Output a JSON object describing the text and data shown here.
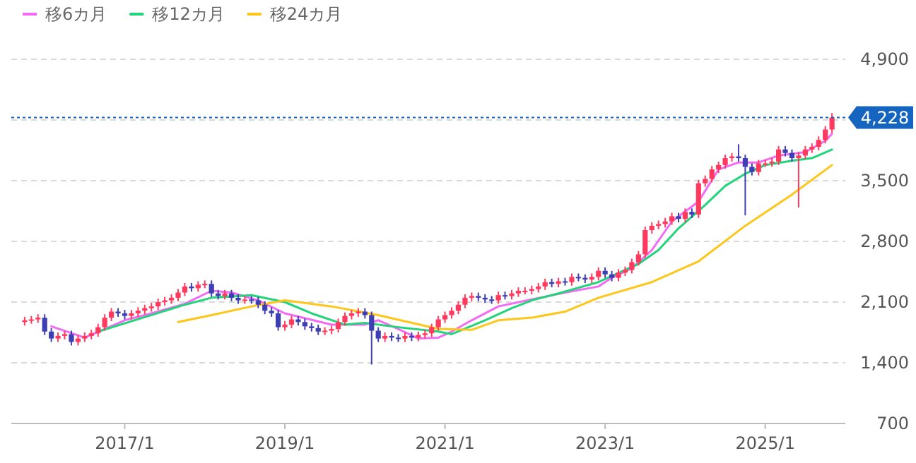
{
  "chart_data": {
    "type": "candlestick",
    "x": [
      "2015-10",
      "2015-11",
      "2015-12",
      "2016-01",
      "2016-02",
      "2016-03",
      "2016-04",
      "2016-05",
      "2016-06",
      "2016-07",
      "2016-08",
      "2016-09",
      "2016-10",
      "2016-11",
      "2016-12",
      "2017-01",
      "2017-02",
      "2017-03",
      "2017-04",
      "2017-05",
      "2017-06",
      "2017-07",
      "2017-08",
      "2017-09",
      "2017-10",
      "2017-11",
      "2017-12",
      "2018-01",
      "2018-02",
      "2018-03",
      "2018-04",
      "2018-05",
      "2018-06",
      "2018-07",
      "2018-08",
      "2018-09",
      "2018-10",
      "2018-11",
      "2018-12",
      "2019-01",
      "2019-02",
      "2019-03",
      "2019-04",
      "2019-05",
      "2019-06",
      "2019-07",
      "2019-08",
      "2019-09",
      "2019-10",
      "2019-11",
      "2019-12",
      "2020-01",
      "2020-02",
      "2020-03",
      "2020-04",
      "2020-05",
      "2020-06",
      "2020-07",
      "2020-08",
      "2020-09",
      "2020-10",
      "2020-11",
      "2020-12",
      "2021-01",
      "2021-02",
      "2021-03",
      "2021-04",
      "2021-05",
      "2021-06",
      "2021-07",
      "2021-08",
      "2021-09",
      "2021-10",
      "2021-11",
      "2021-12",
      "2022-01",
      "2022-02",
      "2022-03",
      "2022-04",
      "2022-05",
      "2022-06",
      "2022-07",
      "2022-08",
      "2022-09",
      "2022-10",
      "2022-11",
      "2022-12",
      "2023-01",
      "2023-02",
      "2023-03",
      "2023-04",
      "2023-05",
      "2023-06",
      "2023-07",
      "2023-08",
      "2023-09",
      "2023-10",
      "2023-11",
      "2023-12",
      "2024-01",
      "2024-02",
      "2024-03",
      "2024-04",
      "2024-05",
      "2024-06",
      "2024-07",
      "2024-08",
      "2024-09",
      "2024-10",
      "2024-11",
      "2024-12",
      "2025-01",
      "2025-02",
      "2025-03",
      "2025-04",
      "2025-05",
      "2025-06",
      "2025-07",
      "2025-08",
      "2025-09",
      "2025-10",
      "2025-11"
    ],
    "ohlc": [
      [
        1870,
        1930,
        1830,
        1890
      ],
      [
        1890,
        1940,
        1850,
        1900
      ],
      [
        1900,
        1960,
        1860,
        1920
      ],
      [
        1920,
        1960,
        1720,
        1760
      ],
      [
        1760,
        1800,
        1640,
        1680
      ],
      [
        1680,
        1750,
        1640,
        1710
      ],
      [
        1710,
        1770,
        1670,
        1730
      ],
      [
        1730,
        1770,
        1600,
        1640
      ],
      [
        1640,
        1720,
        1600,
        1680
      ],
      [
        1680,
        1750,
        1640,
        1710
      ],
      [
        1710,
        1780,
        1670,
        1740
      ],
      [
        1740,
        1850,
        1700,
        1810
      ],
      [
        1810,
        1960,
        1770,
        1920
      ],
      [
        1920,
        2030,
        1880,
        1990
      ],
      [
        1990,
        2030,
        1930,
        1970
      ],
      [
        1970,
        2010,
        1900,
        1940
      ],
      [
        1940,
        2010,
        1900,
        1970
      ],
      [
        1970,
        2040,
        1930,
        2000
      ],
      [
        2000,
        2070,
        1960,
        2030
      ],
      [
        2030,
        2090,
        1990,
        2050
      ],
      [
        2050,
        2140,
        2010,
        2100
      ],
      [
        2100,
        2160,
        2060,
        2120
      ],
      [
        2120,
        2190,
        2080,
        2150
      ],
      [
        2150,
        2250,
        2110,
        2210
      ],
      [
        2210,
        2320,
        2170,
        2280
      ],
      [
        2280,
        2320,
        2220,
        2260
      ],
      [
        2260,
        2340,
        2220,
        2300
      ],
      [
        2300,
        2350,
        2260,
        2310
      ],
      [
        2310,
        2350,
        2160,
        2200
      ],
      [
        2200,
        2240,
        2130,
        2170
      ],
      [
        2170,
        2240,
        2130,
        2200
      ],
      [
        2200,
        2240,
        2110,
        2150
      ],
      [
        2150,
        2190,
        2080,
        2120
      ],
      [
        2120,
        2170,
        2080,
        2130
      ],
      [
        2130,
        2170,
        2080,
        2120
      ],
      [
        2120,
        2160,
        2030,
        2070
      ],
      [
        2070,
        2110,
        1960,
        2000
      ],
      [
        2000,
        2040,
        1930,
        1970
      ],
      [
        1970,
        2010,
        1770,
        1810
      ],
      [
        1810,
        1880,
        1770,
        1840
      ],
      [
        1840,
        1940,
        1800,
        1900
      ],
      [
        1900,
        1940,
        1830,
        1870
      ],
      [
        1870,
        1910,
        1780,
        1820
      ],
      [
        1820,
        1860,
        1760,
        1800
      ],
      [
        1800,
        1840,
        1720,
        1760
      ],
      [
        1760,
        1810,
        1720,
        1770
      ],
      [
        1770,
        1830,
        1730,
        1790
      ],
      [
        1790,
        1910,
        1750,
        1870
      ],
      [
        1870,
        1980,
        1830,
        1940
      ],
      [
        1940,
        2010,
        1900,
        1970
      ],
      [
        1970,
        2030,
        1930,
        1990
      ],
      [
        1990,
        2030,
        1910,
        1950
      ],
      [
        1950,
        1990,
        1380,
        1770
      ],
      [
        1770,
        1810,
        1640,
        1680
      ],
      [
        1680,
        1750,
        1640,
        1710
      ],
      [
        1710,
        1750,
        1650,
        1690
      ],
      [
        1690,
        1730,
        1640,
        1680
      ],
      [
        1680,
        1750,
        1640,
        1710
      ],
      [
        1710,
        1750,
        1650,
        1690
      ],
      [
        1690,
        1760,
        1650,
        1720
      ],
      [
        1720,
        1780,
        1680,
        1740
      ],
      [
        1740,
        1850,
        1700,
        1810
      ],
      [
        1810,
        1940,
        1770,
        1900
      ],
      [
        1900,
        1990,
        1860,
        1950
      ],
      [
        1950,
        2040,
        1910,
        2000
      ],
      [
        2000,
        2110,
        1960,
        2070
      ],
      [
        2070,
        2190,
        2030,
        2150
      ],
      [
        2150,
        2210,
        2110,
        2170
      ],
      [
        2170,
        2210,
        2110,
        2150
      ],
      [
        2150,
        2190,
        2090,
        2130
      ],
      [
        2130,
        2170,
        2080,
        2120
      ],
      [
        2120,
        2220,
        2080,
        2180
      ],
      [
        2180,
        2220,
        2130,
        2170
      ],
      [
        2170,
        2240,
        2130,
        2200
      ],
      [
        2200,
        2270,
        2160,
        2230
      ],
      [
        2230,
        2270,
        2190,
        2230
      ],
      [
        2230,
        2290,
        2190,
        2250
      ],
      [
        2250,
        2320,
        2210,
        2280
      ],
      [
        2280,
        2370,
        2240,
        2330
      ],
      [
        2330,
        2370,
        2270,
        2310
      ],
      [
        2310,
        2380,
        2270,
        2340
      ],
      [
        2340,
        2380,
        2290,
        2330
      ],
      [
        2330,
        2430,
        2290,
        2390
      ],
      [
        2390,
        2430,
        2340,
        2380
      ],
      [
        2380,
        2420,
        2320,
        2360
      ],
      [
        2360,
        2430,
        2320,
        2390
      ],
      [
        2390,
        2500,
        2350,
        2460
      ],
      [
        2460,
        2500,
        2380,
        2420
      ],
      [
        2420,
        2460,
        2340,
        2380
      ],
      [
        2380,
        2480,
        2340,
        2440
      ],
      [
        2440,
        2510,
        2400,
        2470
      ],
      [
        2470,
        2600,
        2430,
        2560
      ],
      [
        2560,
        2690,
        2520,
        2650
      ],
      [
        2650,
        2970,
        2610,
        2930
      ],
      [
        2930,
        3020,
        2890,
        2980
      ],
      [
        2980,
        3040,
        2940,
        3000
      ],
      [
        3000,
        3070,
        2960,
        3030
      ],
      [
        3030,
        3130,
        2990,
        3090
      ],
      [
        3090,
        3130,
        3020,
        3060
      ],
      [
        3060,
        3180,
        3020,
        3140
      ],
      [
        3140,
        3180,
        3070,
        3110
      ],
      [
        3110,
        3510,
        3070,
        3470
      ],
      [
        3470,
        3560,
        3430,
        3520
      ],
      [
        3520,
        3670,
        3480,
        3630
      ],
      [
        3630,
        3720,
        3590,
        3680
      ],
      [
        3680,
        3800,
        3640,
        3760
      ],
      [
        3760,
        3820,
        3720,
        3780
      ],
      [
        3780,
        3920,
        3720,
        3760
      ],
      [
        3760,
        3800,
        3100,
        3660
      ],
      [
        3660,
        3700,
        3560,
        3600
      ],
      [
        3600,
        3740,
        3560,
        3700
      ],
      [
        3700,
        3740,
        3660,
        3700
      ],
      [
        3700,
        3760,
        3660,
        3720
      ],
      [
        3720,
        3900,
        3680,
        3860
      ],
      [
        3860,
        3900,
        3780,
        3820
      ],
      [
        3820,
        3860,
        3720,
        3760
      ],
      [
        3760,
        3830,
        3190,
        3790
      ],
      [
        3790,
        3900,
        3750,
        3860
      ],
      [
        3860,
        3930,
        3820,
        3890
      ],
      [
        3890,
        4010,
        3850,
        3970
      ],
      [
        3970,
        4130,
        3930,
        4090
      ],
      [
        4090,
        4280,
        4050,
        4228
      ]
    ],
    "colors": [
      "#ff3a5e",
      "#ff3a5e",
      "#ff3a5e",
      "#3f3fb5",
      "#3f3fb5",
      "#ff3a5e",
      "#ff3a5e",
      "#3f3fb5",
      "#ff3a5e",
      "#ff3a5e",
      "#ff3a5e",
      "#ff3a5e",
      "#ff3a5e",
      "#ff3a5e",
      "#3f3fb5",
      "#3f3fb5",
      "#ff3a5e",
      "#ff3a5e",
      "#ff3a5e",
      "#ff3a5e",
      "#ff3a5e",
      "#ff3a5e",
      "#ff3a5e",
      "#ff3a5e",
      "#ff3a5e",
      "#3f3fb5",
      "#ff3a5e",
      "#ff3a5e",
      "#3f3fb5",
      "#3f3fb5",
      "#ff3a5e",
      "#3f3fb5",
      "#3f3fb5",
      "#ff3a5e",
      "#3f3fb5",
      "#3f3fb5",
      "#3f3fb5",
      "#3f3fb5",
      "#3f3fb5",
      "#ff3a5e",
      "#ff3a5e",
      "#3f3fb5",
      "#3f3fb5",
      "#3f3fb5",
      "#3f3fb5",
      "#ff3a5e",
      "#ff3a5e",
      "#ff3a5e",
      "#ff3a5e",
      "#ff3a5e",
      "#ff3a5e",
      "#3f3fb5",
      "#3f3fb5",
      "#3f3fb5",
      "#ff3a5e",
      "#3f3fb5",
      "#3f3fb5",
      "#ff3a5e",
      "#3f3fb5",
      "#ff3a5e",
      "#ff3a5e",
      "#ff3a5e",
      "#ff3a5e",
      "#ff3a5e",
      "#ff3a5e",
      "#ff3a5e",
      "#ff3a5e",
      "#ff3a5e",
      "#3f3fb5",
      "#3f3fb5",
      "#3f3fb5",
      "#ff3a5e",
      "#3f3fb5",
      "#ff3a5e",
      "#ff3a5e",
      "#ff3a5e",
      "#ff3a5e",
      "#ff3a5e",
      "#ff3a5e",
      "#3f3fb5",
      "#ff3a5e",
      "#3f3fb5",
      "#ff3a5e",
      "#3f3fb5",
      "#3f3fb5",
      "#ff3a5e",
      "#ff3a5e",
      "#3f3fb5",
      "#3f3fb5",
      "#ff3a5e",
      "#ff3a5e",
      "#ff3a5e",
      "#ff3a5e",
      "#ff3a5e",
      "#ff3a5e",
      "#ff3a5e",
      "#ff3a5e",
      "#ff3a5e",
      "#3f3fb5",
      "#ff3a5e",
      "#3f3fb5",
      "#ff3a5e",
      "#ff3a5e",
      "#ff3a5e",
      "#ff3a5e",
      "#ff3a5e",
      "#ff3a5e",
      "#3f3fb5",
      "#3f3fb5",
      "#3f3fb5",
      "#ff3a5e",
      "#ff3a5e",
      "#ff3a5e",
      "#ff3a5e",
      "#3f3fb5",
      "#3f3fb5",
      "#ff3a5e",
      "#ff3a5e",
      "#ff3a5e",
      "#ff3a5e",
      "#ff3a5e",
      "#ff3a5e"
    ],
    "series": [
      {
        "type": "line",
        "name": "移6カ月",
        "color": "#f36bf5",
        "x": [
          "2016-02",
          "2016-07",
          "2016-10",
          "2017-01",
          "2017-05",
          "2017-10",
          "2018-02",
          "2018-05",
          "2018-09",
          "2019-01",
          "2019-08",
          "2020-01",
          "2020-03",
          "2020-06",
          "2020-09",
          "2020-12",
          "2021-02",
          "2021-05",
          "2021-09",
          "2022-02",
          "2022-07",
          "2022-12",
          "2023-02",
          "2023-05",
          "2023-08",
          "2023-11",
          "2024-03",
          "2024-06",
          "2024-09",
          "2024-12",
          "2025-03",
          "2025-07",
          "2025-10",
          "2025-11"
        ],
        "values": [
          1820,
          1690,
          1790,
          1890,
          1970,
          2080,
          2230,
          2210,
          2120,
          1970,
          1840,
          1840,
          1890,
          1790,
          1680,
          1690,
          1760,
          1890,
          2050,
          2130,
          2210,
          2280,
          2380,
          2490,
          2700,
          3030,
          3260,
          3630,
          3710,
          3710,
          3790,
          3830,
          3960,
          4040
        ]
      },
      {
        "type": "line",
        "name": "移12カ月",
        "color": "#22d47a",
        "x": [
          "2016-09",
          "2017-05",
          "2017-10",
          "2018-02",
          "2018-08",
          "2019-01",
          "2019-05",
          "2019-10",
          "2020-01",
          "2020-06",
          "2020-12",
          "2021-02",
          "2021-07",
          "2021-11",
          "2022-02",
          "2022-06",
          "2022-12",
          "2023-06",
          "2023-09",
          "2023-12",
          "2024-04",
          "2024-07",
          "2024-10",
          "2025-01",
          "2025-05",
          "2025-08",
          "2025-11"
        ],
        "values": [
          1760,
          1950,
          2070,
          2150,
          2180,
          2100,
          1970,
          1840,
          1860,
          1810,
          1760,
          1730,
          1890,
          2030,
          2120,
          2200,
          2330,
          2540,
          2700,
          2950,
          3220,
          3440,
          3580,
          3680,
          3730,
          3760,
          3860
        ]
      },
      {
        "type": "line",
        "name": "移24カ月",
        "color": "#ffc61a",
        "x": [
          "2017-09",
          "2018-02",
          "2018-08",
          "2019-01",
          "2019-08",
          "2020-03",
          "2020-12",
          "2021-05",
          "2021-09",
          "2022-02",
          "2022-07",
          "2022-12",
          "2023-08",
          "2024-03",
          "2024-10",
          "2025-05",
          "2025-11"
        ],
        "values": [
          1870,
          1950,
          2050,
          2120,
          2050,
          1950,
          1790,
          1780,
          1890,
          1920,
          1990,
          2150,
          2330,
          2570,
          2980,
          3340,
          3680
        ]
      }
    ],
    "xlim": [
      "2015-08",
      "2026-01"
    ],
    "xticks": [
      {
        "value": "2017-01",
        "label": "2017/1"
      },
      {
        "value": "2019-01",
        "label": "2019/1"
      },
      {
        "value": "2021-01",
        "label": "2021/1"
      },
      {
        "value": "2023-01",
        "label": "2023/1"
      },
      {
        "value": "2025-01",
        "label": "2025/1"
      }
    ],
    "ylim": [
      700,
      4900
    ],
    "yticks": [
      700,
      {
        "value": 1400,
        "label": "1,400"
      },
      {
        "value": 2100,
        "label": "2,100"
      },
      {
        "value": 2800,
        "label": "2,800"
      },
      {
        "value": 3500,
        "label": "3,500"
      },
      {
        "value": 4200,
        "label": null
      },
      {
        "value": 4900,
        "label": "4,900"
      }
    ],
    "grid": "y",
    "legend": "top left",
    "ref_lines": [
      {
        "axis": "y",
        "value": 4228,
        "label": "4,228",
        "color": "#1565c0",
        "line_style": "dotted"
      }
    ]
  }
}
